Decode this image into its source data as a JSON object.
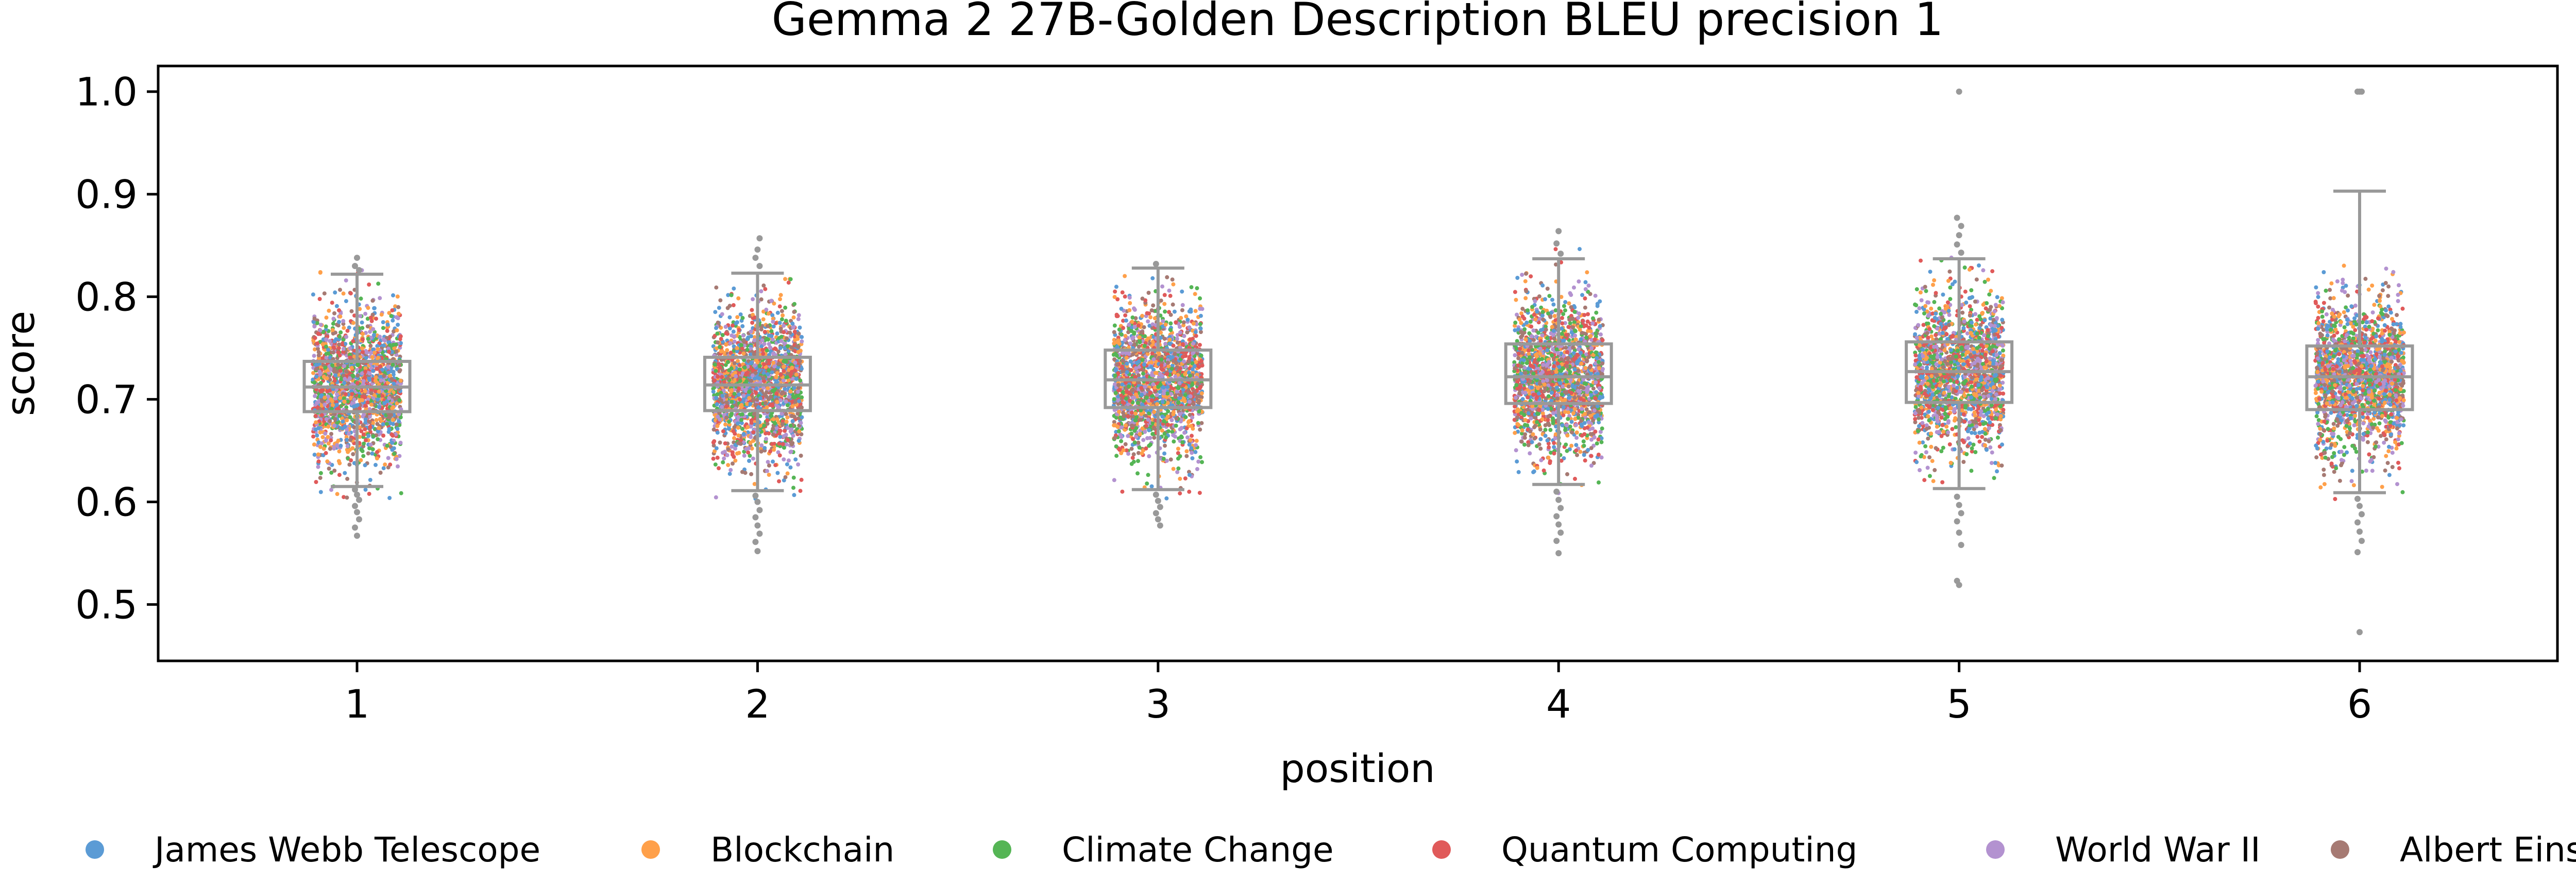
{
  "chart_data": {
    "type": "box",
    "overlay": "strip",
    "title": "Gemma 2 27B-Golden Description BLEU precision 1",
    "xlabel": "position",
    "ylabel": "score",
    "categories": [
      "1",
      "2",
      "3",
      "4",
      "5",
      "6"
    ],
    "ylim": [
      0.445,
      1.025
    ],
    "yticks": [
      "0.5",
      "0.6",
      "0.7",
      "0.8",
      "0.9",
      "1.0"
    ],
    "grid": false,
    "legend_placement": "bottom",
    "box_color": "#999999",
    "boxes": [
      {
        "position": "1",
        "whisker_low": 0.615,
        "q1": 0.688,
        "median": 0.712,
        "q3": 0.737,
        "whisker_high": 0.822,
        "outliers_low": [
          0.612,
          0.607,
          0.602,
          0.596,
          0.59,
          0.583,
          0.575,
          0.567
        ],
        "outliers_high": [
          0.826,
          0.83,
          0.838
        ]
      },
      {
        "position": "2",
        "whisker_low": 0.611,
        "q1": 0.689,
        "median": 0.714,
        "q3": 0.741,
        "whisker_high": 0.823,
        "outliers_low": [
          0.606,
          0.6,
          0.592,
          0.585,
          0.577,
          0.569,
          0.561,
          0.552
        ],
        "outliers_high": [
          0.83,
          0.838,
          0.846,
          0.857
        ]
      },
      {
        "position": "3",
        "whisker_low": 0.612,
        "q1": 0.692,
        "median": 0.719,
        "q3": 0.748,
        "whisker_high": 0.828,
        "outliers_low": [
          0.607,
          0.601,
          0.595,
          0.589,
          0.583,
          0.577
        ],
        "outliers_high": [
          0.832
        ]
      },
      {
        "position": "4",
        "whisker_low": 0.617,
        "q1": 0.696,
        "median": 0.722,
        "q3": 0.754,
        "whisker_high": 0.837,
        "outliers_low": [
          0.61,
          0.602,
          0.594,
          0.586,
          0.578,
          0.57,
          0.562,
          0.55
        ],
        "outliers_high": [
          0.842,
          0.852,
          0.864
        ]
      },
      {
        "position": "5",
        "whisker_low": 0.613,
        "q1": 0.697,
        "median": 0.727,
        "q3": 0.756,
        "whisker_high": 0.837,
        "outliers_low": [
          0.605,
          0.597,
          0.589,
          0.581,
          0.57,
          0.558,
          0.523,
          0.519
        ],
        "outliers_high": [
          0.843,
          0.851,
          0.86,
          0.869,
          0.877,
          1.0
        ]
      },
      {
        "position": "6",
        "whisker_low": 0.609,
        "q1": 0.69,
        "median": 0.722,
        "q3": 0.752,
        "whisker_high": 0.903,
        "outliers_low": [
          0.603,
          0.596,
          0.588,
          0.58,
          0.571,
          0.562,
          0.551,
          0.473
        ],
        "outliers_high": [
          1.0,
          1.0,
          1.0
        ]
      }
    ],
    "series": [
      {
        "name": "James Webb Telescope",
        "color": "#5b9bd5"
      },
      {
        "name": "Blockchain",
        "color": "#ffa04a"
      },
      {
        "name": "Climate Change",
        "color": "#55b555"
      },
      {
        "name": "Quantum Computing",
        "color": "#e05a5a"
      },
      {
        "name": "World War II",
        "color": "#b392d0"
      },
      {
        "name": "Albert Einstein",
        "color": "#a67a73"
      }
    ],
    "strip_points_per_position": 1800,
    "strip_spread_sd": 0.036
  }
}
